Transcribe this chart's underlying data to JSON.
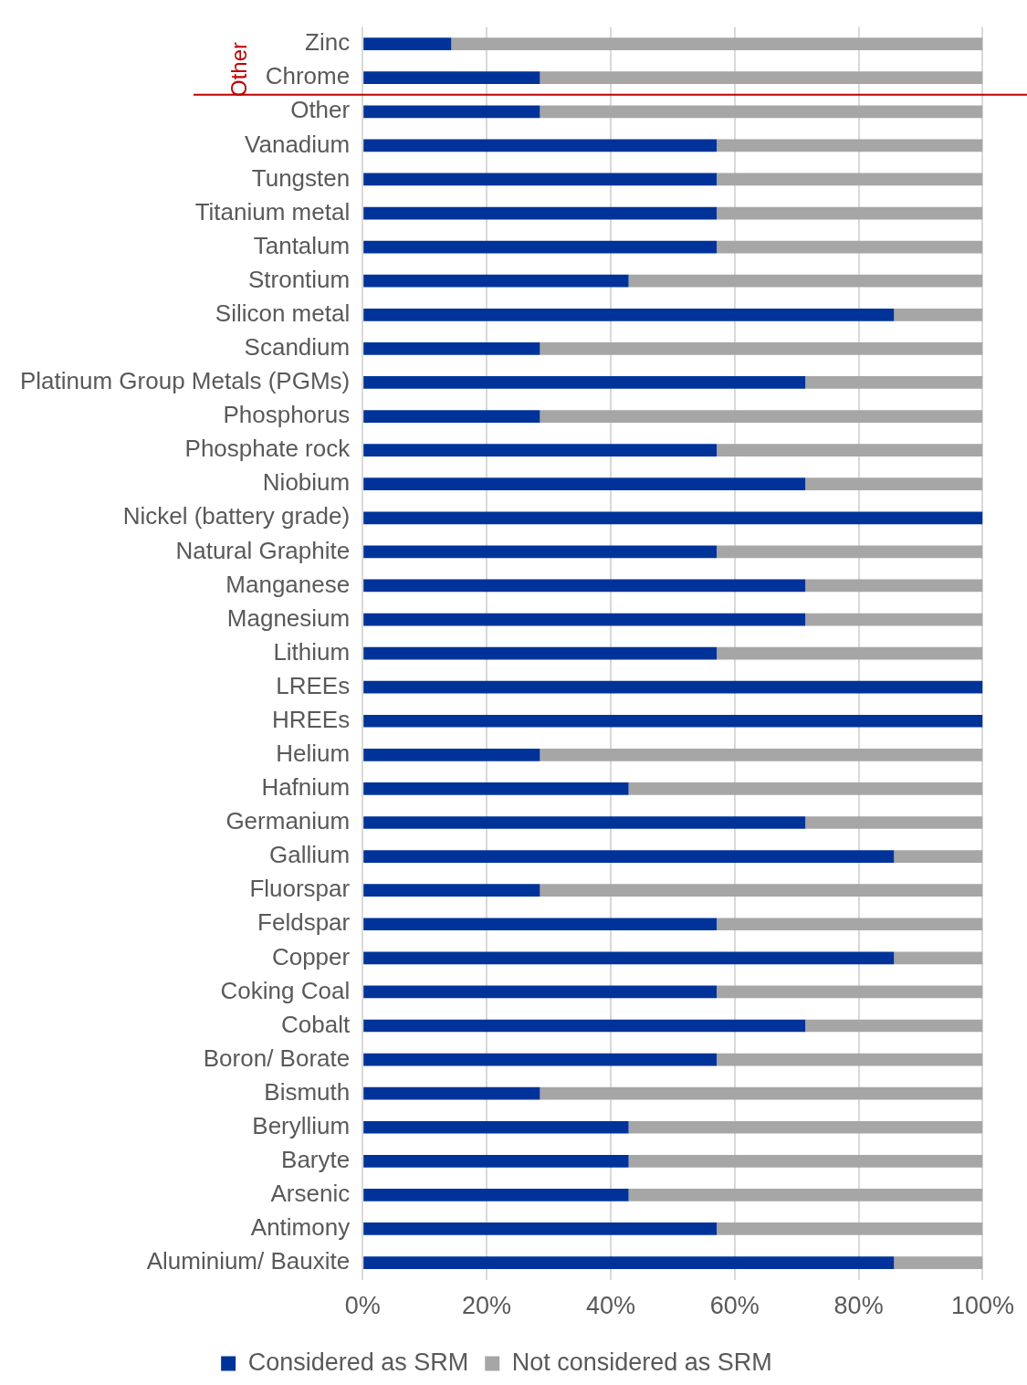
{
  "chart_data": {
    "type": "bar",
    "orientation": "horizontal",
    "stacked": true,
    "categories": [
      "Zinc",
      "Chrome",
      "Other",
      "Vanadium",
      "Tungsten",
      "Titanium metal",
      "Tantalum",
      "Strontium",
      "Silicon metal",
      "Scandium",
      "Platinum Group Metals (PGMs)",
      "Phosphorus",
      "Phosphate rock",
      "Niobium",
      "Nickel (battery grade)",
      "Natural Graphite",
      "Manganese",
      "Magnesium",
      "Lithium",
      "LREEs",
      "HREEs",
      "Helium",
      "Hafnium",
      "Germanium",
      "Gallium",
      "Fluorspar",
      "Feldspar",
      "Copper",
      "Coking Coal",
      "Cobalt",
      "Boron/ Borate",
      "Bismuth",
      "Beryllium",
      "Baryte",
      "Arsenic",
      "Antimony",
      "Aluminium/ Bauxite"
    ],
    "series": [
      {
        "name": "Considered as SRM",
        "color": "#003399",
        "values": [
          14.3,
          28.6,
          28.6,
          57.1,
          57.1,
          57.1,
          57.1,
          42.9,
          85.7,
          28.6,
          71.4,
          28.6,
          57.1,
          71.4,
          100,
          57.1,
          71.4,
          71.4,
          57.1,
          100,
          100,
          28.6,
          42.9,
          71.4,
          85.7,
          28.6,
          57.1,
          85.7,
          57.1,
          71.4,
          57.1,
          28.6,
          42.9,
          42.9,
          42.9,
          57.1,
          85.7
        ]
      },
      {
        "name": "Not considered as SRM",
        "color": "#a6a6a6",
        "values": [
          85.7,
          71.4,
          71.4,
          42.9,
          42.9,
          42.9,
          42.9,
          57.1,
          14.3,
          71.4,
          28.6,
          71.4,
          42.9,
          28.6,
          0,
          42.9,
          28.6,
          28.6,
          42.9,
          0,
          0,
          71.4,
          57.1,
          28.6,
          14.3,
          71.4,
          42.9,
          14.3,
          42.9,
          28.6,
          42.9,
          71.4,
          57.1,
          57.1,
          57.1,
          42.9,
          14.3
        ]
      }
    ],
    "xlim": [
      0,
      100
    ],
    "xticks": [
      {
        "value": 0,
        "label": "0%"
      },
      {
        "value": 20,
        "label": "20%"
      },
      {
        "value": 40,
        "label": "40%"
      },
      {
        "value": 60,
        "label": "60%"
      },
      {
        "value": 80,
        "label": "80%"
      },
      {
        "value": 100,
        "label": "100%"
      }
    ],
    "grid": "x",
    "legend": "bottom",
    "ref_lines": [
      {
        "axis": "y",
        "value": "Chrome",
        "label": "Other",
        "color": "#c00000"
      }
    ]
  }
}
